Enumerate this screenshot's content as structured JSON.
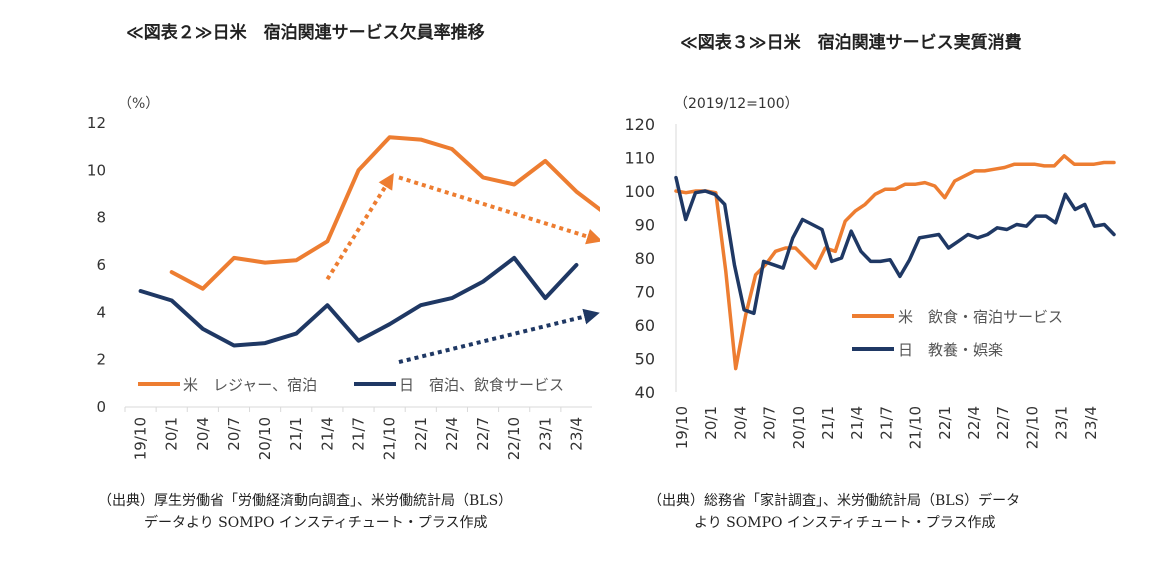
{
  "charts": [
    {
      "title": "≪図表２≫日米　宿泊関連サービス欠員率推移",
      "source_lines": [
        "（出典）厚生労働省「労働経済動向調査」、米労働統計局（BLS）",
        "データより SOMPO インスティチュート・プラス作成"
      ]
    },
    {
      "title": "≪図表３≫日米　宿泊関連サービス実質消費",
      "source_lines": [
        "（出典）総務省「家計調査」、米労働統計局（BLS）データ",
        "より SOMPO インスティチュート・プラス作成"
      ]
    }
  ],
  "colors": {
    "us": "#ED7D31",
    "jp": "#1F3864",
    "axis": "#D9D9D9"
  },
  "chart_data": [
    {
      "type": "line",
      "unit_label": "（%）",
      "ylim": [
        0,
        12
      ],
      "yticks": [
        0,
        2,
        4,
        6,
        8,
        10,
        12
      ],
      "x_tick_labels": [
        "19/10",
        "20/1",
        "20/4",
        "20/7",
        "20/10",
        "21/1",
        "21/4",
        "21/7",
        "21/10",
        "22/1",
        "22/4",
        "22/7",
        "22/10",
        "23/1",
        "23/4"
      ],
      "series": [
        {
          "name": "米　レジャー、宿泊",
          "color": "#ED7D31",
          "points": [
            [
              1,
              5.7
            ],
            [
              2,
              5.0
            ],
            [
              3,
              6.3
            ],
            [
              4,
              6.1
            ],
            [
              5,
              6.2
            ],
            [
              6,
              7.0
            ],
            [
              7,
              10.0
            ],
            [
              8,
              11.4
            ],
            [
              9,
              11.3
            ],
            [
              10,
              10.9
            ],
            [
              11,
              9.7
            ],
            [
              12,
              9.4
            ],
            [
              13,
              10.4
            ],
            [
              14,
              9.1
            ],
            [
              15,
              8.1
            ]
          ]
        },
        {
          "name": "日　宿泊、飲食サービス",
          "color": "#1F3864",
          "points": [
            [
              0,
              4.9
            ],
            [
              1,
              4.5
            ],
            [
              2,
              3.3
            ],
            [
              3,
              2.6
            ],
            [
              4,
              2.7
            ],
            [
              5,
              3.1
            ],
            [
              6,
              4.3
            ],
            [
              7,
              2.8
            ],
            [
              8,
              3.5
            ],
            [
              9,
              4.3
            ],
            [
              10,
              4.6
            ],
            [
              11,
              5.3
            ],
            [
              12,
              6.3
            ],
            [
              13,
              4.6
            ],
            [
              14,
              6.0
            ]
          ]
        }
      ],
      "arrows": [
        {
          "color": "#ED7D31",
          "from": [
            6.0,
            5.4
          ],
          "to": [
            8.0,
            9.6
          ]
        },
        {
          "color": "#ED7D31",
          "from": [
            8.3,
            9.7
          ],
          "to": [
            14.6,
            7.1
          ]
        },
        {
          "color": "#1F3864",
          "from": [
            8.3,
            1.9
          ],
          "to": [
            14.5,
            3.9
          ]
        }
      ]
    },
    {
      "type": "line",
      "unit_label": "（2019/12=100）",
      "ylim": [
        40,
        120
      ],
      "yticks": [
        40,
        50,
        60,
        70,
        80,
        90,
        100,
        110,
        120
      ],
      "x_tick_labels": [
        "19/10",
        "20/1",
        "20/4",
        "20/7",
        "20/10",
        "21/1",
        "21/4",
        "21/7",
        "21/10",
        "22/1",
        "22/4",
        "22/7",
        "22/10",
        "23/1",
        "23/4"
      ],
      "series": [
        {
          "name": "米　飲食・宿泊サービス",
          "color": "#ED7D31",
          "values": [
            100,
            99.5,
            100,
            100,
            99.5,
            76,
            47,
            63,
            75,
            78,
            82,
            83,
            83,
            80,
            77,
            83,
            82,
            91,
            94,
            96,
            99,
            100.5,
            100.5,
            102,
            102,
            102.5,
            101.5,
            98,
            103,
            104.5,
            106,
            106,
            106.5,
            107,
            108,
            108,
            108,
            107.5,
            107.5,
            110.5,
            108,
            108,
            108,
            108.5,
            108.5
          ]
        },
        {
          "name": "日　教養・娯楽",
          "color": "#1F3864",
          "values": [
            104,
            91.5,
            99.5,
            100,
            99,
            96,
            78,
            64.5,
            63.5,
            79,
            78,
            77,
            86,
            91.5,
            90,
            88.5,
            79,
            80,
            88,
            82,
            79,
            79,
            79.5,
            74.5,
            79.5,
            86,
            86.5,
            87,
            83,
            85,
            87,
            86,
            87,
            89,
            88.5,
            90,
            89.5,
            92.5,
            92.5,
            90.5,
            99,
            94.5,
            96,
            89.5,
            90,
            87
          ]
        }
      ]
    }
  ]
}
